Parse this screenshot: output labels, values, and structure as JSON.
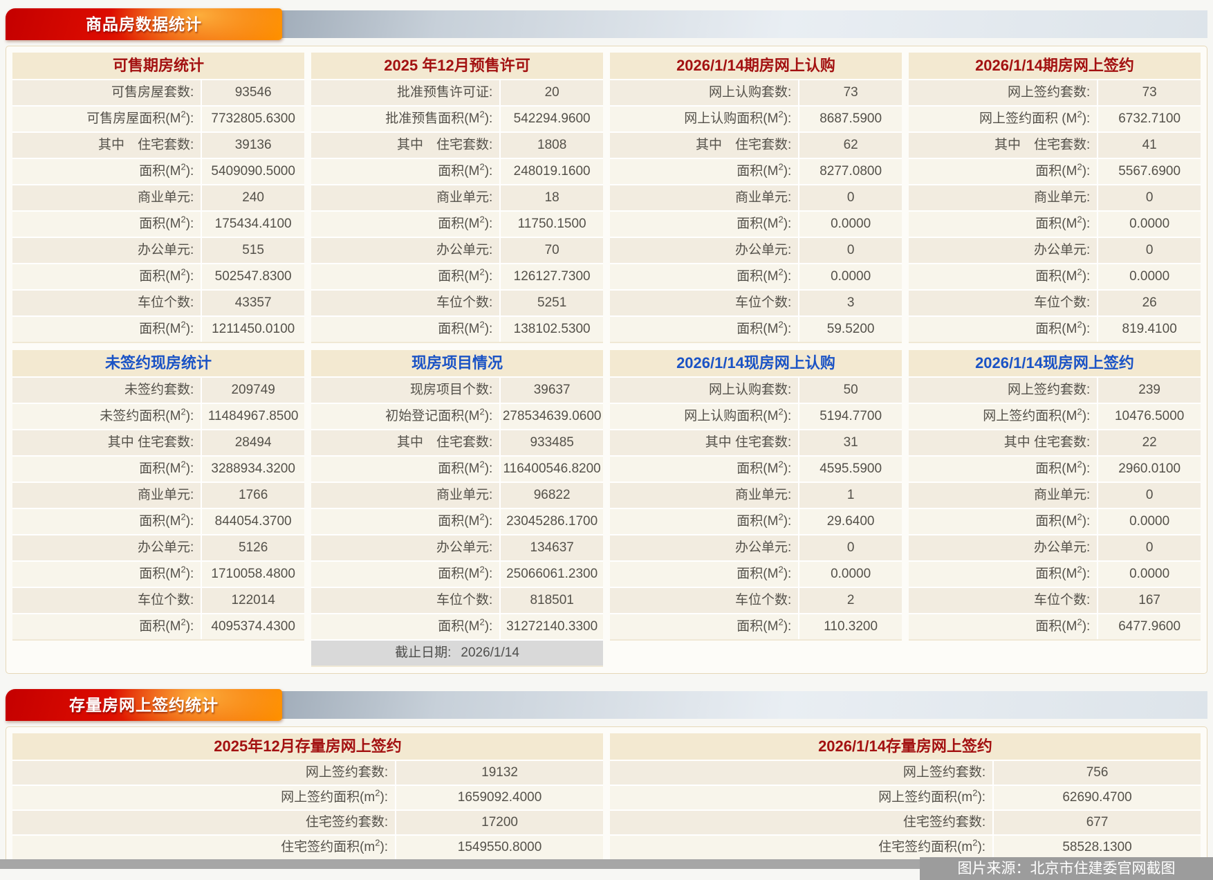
{
  "banners": {
    "commodity": "商品房数据统计",
    "stock": "存量房网上签约统计"
  },
  "watermark": "图片来源：北京市住建委官网截图",
  "colors": {
    "banner_red": "#c40000",
    "banner_orange": "#ff9300",
    "header_red": "#a31111",
    "header_blue": "#1b53c5",
    "panel_header_bg": "#f3e9d1",
    "deadline_bar_bg": "#d9d9d9"
  },
  "commodity_panels": [
    {
      "title": "可售期房统计",
      "accent": "red",
      "rows": [
        {
          "label": "可售房屋套数:",
          "value": "93546"
        },
        {
          "label": "可售房屋面积(M²):",
          "value": "7732805.6300"
        },
        {
          "label": "其中　住宅套数:",
          "value": "39136"
        },
        {
          "label": "面积(M²):",
          "value": "5409090.5000"
        },
        {
          "label": "商业单元:",
          "value": "240"
        },
        {
          "label": "面积(M²):",
          "value": "175434.4100"
        },
        {
          "label": "办公单元:",
          "value": "515"
        },
        {
          "label": "面积(M²):",
          "value": "502547.8300"
        },
        {
          "label": "车位个数:",
          "value": "43357"
        },
        {
          "label": "面积(M²):",
          "value": "1211450.0100"
        }
      ]
    },
    {
      "title": "2025 年12月预售许可",
      "accent": "red",
      "rows": [
        {
          "label": "批准预售许可证:",
          "value": "20"
        },
        {
          "label": "批准预售面积(M²):",
          "value": "542294.9600"
        },
        {
          "label": "其中　住宅套数:",
          "value": "1808"
        },
        {
          "label": "面积(M²):",
          "value": "248019.1600"
        },
        {
          "label": "商业单元:",
          "value": "18"
        },
        {
          "label": "面积(M²):",
          "value": "11750.1500"
        },
        {
          "label": "办公单元:",
          "value": "70"
        },
        {
          "label": "面积(M²):",
          "value": "126127.7300"
        },
        {
          "label": "车位个数:",
          "value": "5251"
        },
        {
          "label": "面积(M²):",
          "value": "138102.5300"
        }
      ]
    },
    {
      "title": "2026/1/14期房网上认购",
      "accent": "red",
      "rows": [
        {
          "label": "网上认购套数:",
          "value": "73"
        },
        {
          "label": "网上认购面积(M²):",
          "value": "8687.5900"
        },
        {
          "label": "其中　住宅套数:",
          "value": "62"
        },
        {
          "label": "面积(M²):",
          "value": "8277.0800"
        },
        {
          "label": "商业单元:",
          "value": "0"
        },
        {
          "label": "面积(M²):",
          "value": "0.0000"
        },
        {
          "label": "办公单元:",
          "value": "0"
        },
        {
          "label": "面积(M²):",
          "value": "0.0000"
        },
        {
          "label": "车位个数:",
          "value": "3"
        },
        {
          "label": "面积(M²):",
          "value": "59.5200"
        }
      ]
    },
    {
      "title": "2026/1/14期房网上签约",
      "accent": "red",
      "rows": [
        {
          "label": "网上签约套数:",
          "value": "73"
        },
        {
          "label": "网上签约面积 (M²):",
          "value": "6732.7100"
        },
        {
          "label": "其中　住宅套数:",
          "value": "41"
        },
        {
          "label": "面积(M²):",
          "value": "5567.6900"
        },
        {
          "label": "商业单元:",
          "value": "0"
        },
        {
          "label": "面积(M²):",
          "value": "0.0000"
        },
        {
          "label": "办公单元:",
          "value": "0"
        },
        {
          "label": "面积(M²):",
          "value": "0.0000"
        },
        {
          "label": "车位个数:",
          "value": "26"
        },
        {
          "label": "面积(M²):",
          "value": "819.4100"
        }
      ]
    },
    {
      "title": "未签约现房统计",
      "accent": "blue",
      "rows": [
        {
          "label": "未签约套数:",
          "value": "209749"
        },
        {
          "label": "未签约面积(M²):",
          "value": "11484967.8500"
        },
        {
          "label": "其中 住宅套数:",
          "value": "28494"
        },
        {
          "label": "面积(M²):",
          "value": "3288934.3200"
        },
        {
          "label": "商业单元:",
          "value": "1766"
        },
        {
          "label": "面积(M²):",
          "value": "844054.3700"
        },
        {
          "label": "办公单元:",
          "value": "5126"
        },
        {
          "label": "面积(M²):",
          "value": "1710058.4800"
        },
        {
          "label": "车位个数:",
          "value": "122014"
        },
        {
          "label": "面积(M²):",
          "value": "4095374.4300"
        }
      ]
    },
    {
      "title": "现房项目情况",
      "accent": "blue",
      "rows": [
        {
          "label": "现房项目个数:",
          "value": "39637"
        },
        {
          "label": "初始登记面积(M²):",
          "value": "278534639.0600"
        },
        {
          "label": "其中　住宅套数:",
          "value": "933485"
        },
        {
          "label": "面积(M²):",
          "value": "116400546.8200"
        },
        {
          "label": "商业单元:",
          "value": "96822"
        },
        {
          "label": "面积(M²):",
          "value": "23045286.1700"
        },
        {
          "label": "办公单元:",
          "value": "134637"
        },
        {
          "label": "面积(M²):",
          "value": "25066061.2300"
        },
        {
          "label": "车位个数:",
          "value": "818501"
        },
        {
          "label": "面积(M²):",
          "value": "31272140.3300"
        }
      ],
      "footer": {
        "label": "截止日期:",
        "value": "2026/1/14"
      }
    },
    {
      "title": "2026/1/14现房网上认购",
      "accent": "blue",
      "rows": [
        {
          "label": "网上认购套数:",
          "value": "50"
        },
        {
          "label": "网上认购面积(M²):",
          "value": "5194.7700"
        },
        {
          "label": "其中 住宅套数:",
          "value": "31"
        },
        {
          "label": "面积(M²):",
          "value": "4595.5900"
        },
        {
          "label": "商业单元:",
          "value": "1"
        },
        {
          "label": "面积(M²):",
          "value": "29.6400"
        },
        {
          "label": "办公单元:",
          "value": "0"
        },
        {
          "label": "面积(M²):",
          "value": "0.0000"
        },
        {
          "label": "车位个数:",
          "value": "2"
        },
        {
          "label": "面积(M²):",
          "value": "110.3200"
        }
      ]
    },
    {
      "title": "2026/1/14现房网上签约",
      "accent": "blue",
      "rows": [
        {
          "label": "网上签约套数:",
          "value": "239"
        },
        {
          "label": "网上签约面积(M²):",
          "value": "10476.5000"
        },
        {
          "label": "其中 住宅套数:",
          "value": "22"
        },
        {
          "label": "面积(M²):",
          "value": "2960.0100"
        },
        {
          "label": "商业单元:",
          "value": "0"
        },
        {
          "label": "面积(M²):",
          "value": "0.0000"
        },
        {
          "label": "办公单元:",
          "value": "0"
        },
        {
          "label": "面积(M²):",
          "value": "0.0000"
        },
        {
          "label": "车位个数:",
          "value": "167"
        },
        {
          "label": "面积(M²):",
          "value": "6477.9600"
        }
      ]
    }
  ],
  "stock_panels": [
    {
      "title": "2025年12月存量房网上签约",
      "accent": "red",
      "rows": [
        {
          "label": "网上签约套数:",
          "value": "19132"
        },
        {
          "label": "网上签约面积(m²):",
          "value": "1659092.4000"
        },
        {
          "label": "住宅签约套数:",
          "value": "17200"
        },
        {
          "label": "住宅签约面积(m²):",
          "value": "1549550.8000"
        }
      ]
    },
    {
      "title": "2026/1/14存量房网上签约",
      "accent": "red",
      "rows": [
        {
          "label": "网上签约套数:",
          "value": "756"
        },
        {
          "label": "网上签约面积(m²):",
          "value": "62690.4700"
        },
        {
          "label": "住宅签约套数:",
          "value": "677"
        },
        {
          "label": "住宅签约面积(m²):",
          "value": "58528.1300"
        }
      ]
    }
  ]
}
